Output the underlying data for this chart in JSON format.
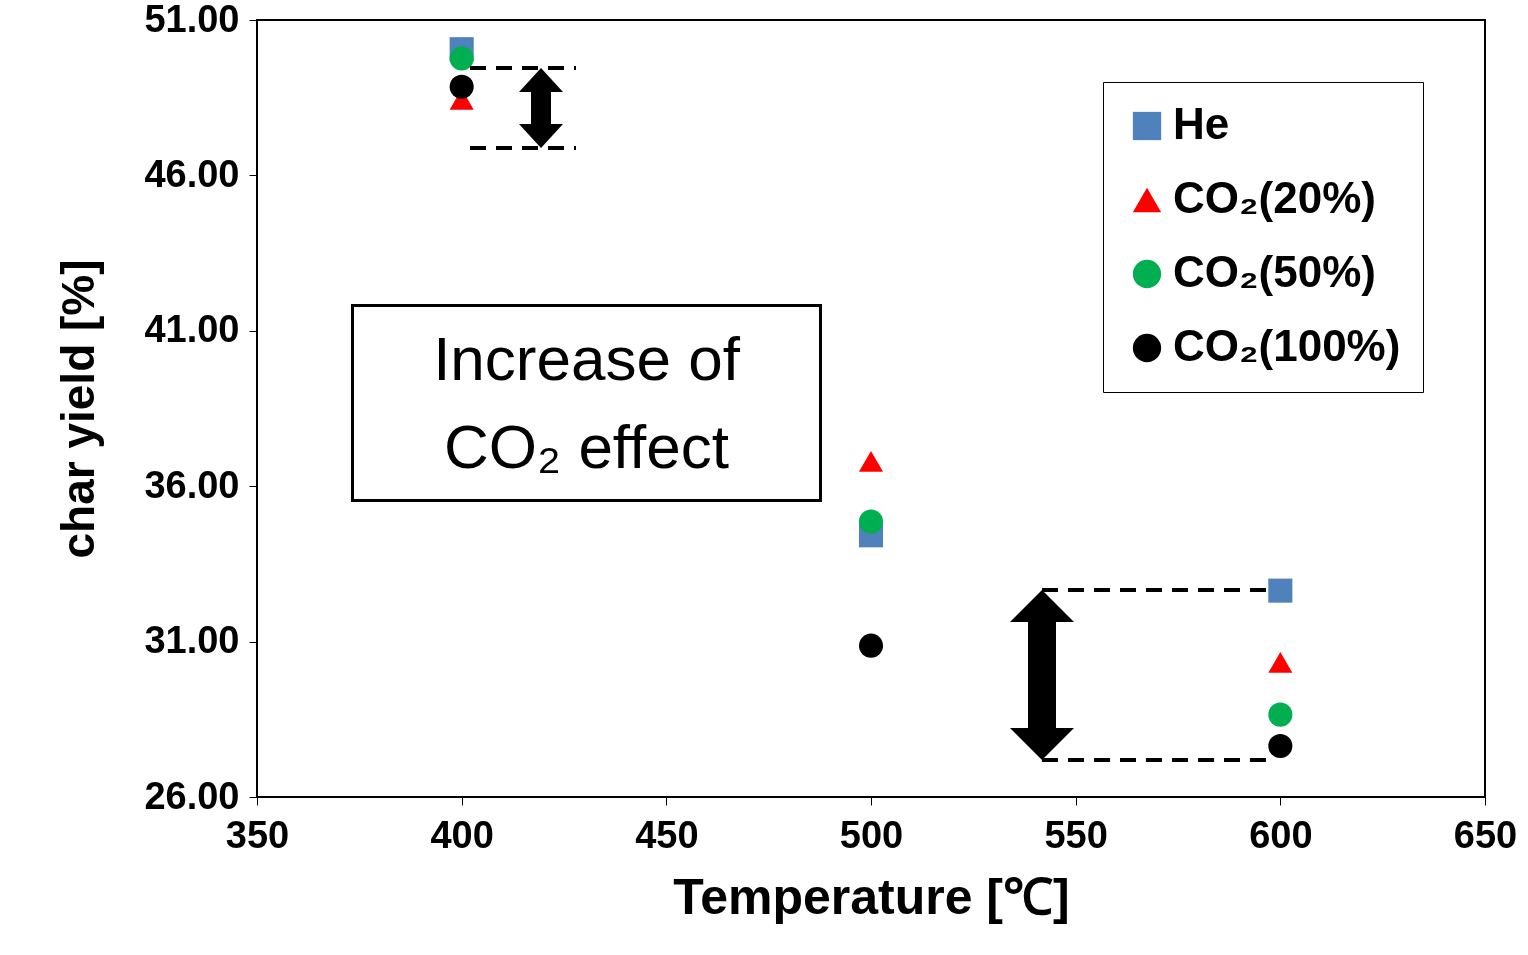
{
  "chart_data": {
    "type": "scatter",
    "xlabel": "Temperature [℃]",
    "ylabel": "char yield [%]",
    "x": [
      400,
      500,
      600
    ],
    "series": [
      {
        "name": "He",
        "color": "#4f81bd",
        "marker": "square",
        "values": [
          50.06,
          34.42,
          32.64
        ]
      },
      {
        "name": "CO₂(20%)",
        "color": "#ff0000",
        "marker": "triangle",
        "values": [
          48.45,
          36.8,
          30.33
        ]
      },
      {
        "name": "CO₂(50%)",
        "color": "#00b050",
        "marker": "circle",
        "values": [
          49.76,
          34.86,
          28.65
        ]
      },
      {
        "name": "CO₂(100%)",
        "color": "#000000",
        "marker": "circle",
        "values": [
          48.85,
          30.87,
          27.64
        ]
      }
    ],
    "xlim": [
      350,
      650
    ],
    "xticks": [
      350,
      400,
      450,
      500,
      550,
      600,
      650
    ],
    "ylim": [
      26,
      51
    ],
    "yticks": [
      {
        "value": 26,
        "label": "26.00"
      },
      {
        "value": 31,
        "label": "31.00"
      },
      {
        "value": 36,
        "label": "36.00"
      },
      {
        "value": 41,
        "label": "41.00"
      },
      {
        "value": 46,
        "label": "46.00"
      },
      {
        "value": 51,
        "label": "51.00"
      }
    ],
    "grid": false,
    "legend": "top right",
    "annotations": [
      "Increase of CO₂ effect"
    ]
  }
}
